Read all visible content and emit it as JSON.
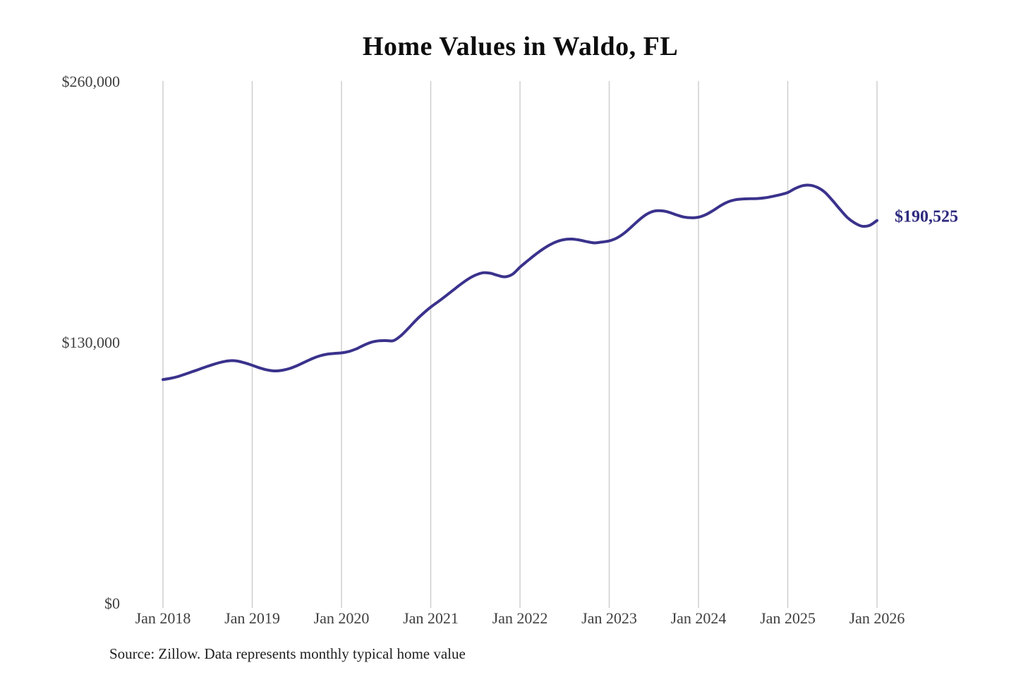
{
  "page": {
    "title": "Home Values in Waldo, FL",
    "source_note": "Source: Zillow. Data represents monthly typical home value"
  },
  "colors": {
    "background": "#ffffff",
    "line": "#3a328c",
    "grid": "#cccccc",
    "axis_text": "#3f3f3f",
    "title_text": "#0d0d0d",
    "annotation_text": "#2e2a7e"
  },
  "chart_data": {
    "type": "line",
    "title": "Home Values in Waldo, FL",
    "xlabel": "",
    "ylabel": "",
    "x_unit": "month",
    "x_range": [
      "Jan 2018",
      "Jan 2026"
    ],
    "months_per_x_tick": 12,
    "x_tick_labels": [
      "Jan 2018",
      "Jan 2019",
      "Jan 2020",
      "Jan 2021",
      "Jan 2022",
      "Jan 2023",
      "Jan 2024",
      "Jan 2025",
      "Jan 2026"
    ],
    "y_ticks": [
      {
        "value": 0,
        "label": "$0"
      },
      {
        "value": 130000,
        "label": "$130,000"
      },
      {
        "value": 260000,
        "label": "$260,000"
      }
    ],
    "ylim": [
      0,
      260000
    ],
    "grid": "vertical-only",
    "legend": "none",
    "series": [
      {
        "name": "Monthly typical home value",
        "start": "Jan 2018",
        "end": "Jan 2026",
        "values": [
          111300,
          111900,
          112800,
          114000,
          115300,
          116600,
          117900,
          119100,
          120100,
          120700,
          120500,
          119600,
          118400,
          117100,
          116100,
          115600,
          115900,
          116800,
          118200,
          119900,
          121600,
          123000,
          123900,
          124300,
          124600,
          125300,
          126600,
          128400,
          129900,
          130600,
          130700,
          130700,
          133200,
          136900,
          140800,
          144300,
          147400,
          150100,
          152900,
          155800,
          158700,
          161300,
          163300,
          164500,
          164300,
          163200,
          162500,
          163800,
          167300,
          170400,
          173400,
          176100,
          178400,
          180100,
          181100,
          181300,
          180800,
          180000,
          179400,
          179800,
          180400,
          181800,
          184200,
          187400,
          190800,
          193600,
          195200,
          195400,
          194700,
          193400,
          192300,
          191900,
          192200,
          193500,
          195600,
          198000,
          199900,
          200900,
          201300,
          201400,
          201500,
          201900,
          202600,
          203400,
          204500,
          206500,
          207900,
          208100,
          207000,
          204600,
          200600,
          196200,
          192100,
          189300,
          187700,
          188100,
          190525
        ]
      }
    ],
    "annotation": {
      "text": "$190,525",
      "value": 190525
    }
  }
}
